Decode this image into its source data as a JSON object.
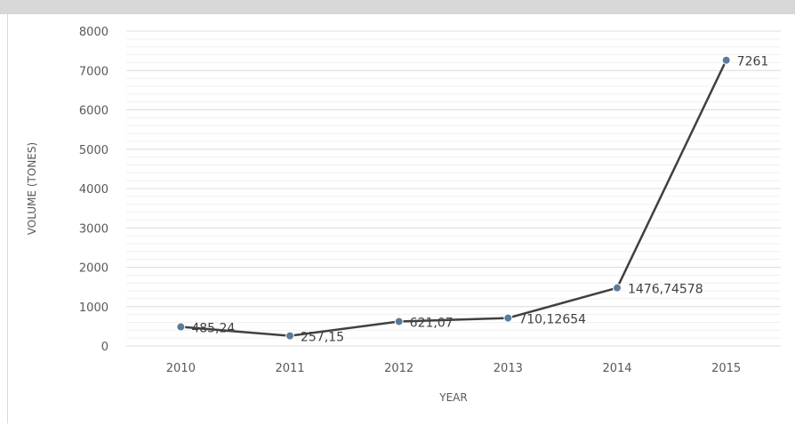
{
  "chart_data": {
    "type": "line",
    "categories": [
      "2010",
      "2011",
      "2012",
      "2013",
      "2014",
      "2015"
    ],
    "series": [
      {
        "values": [
          485.24,
          257.15,
          621.07,
          710.12654,
          1476.74578,
          7261
        ]
      }
    ],
    "data_labels": [
      "485,24",
      "257,15",
      "621,07",
      "710,12654",
      "1476,74578",
      "7261"
    ],
    "xlabel": "YEAR",
    "ylabel": "VOLUME (TONES)",
    "ylim": [
      0,
      8000
    ],
    "yticks": [
      "0",
      "1000",
      "2000",
      "3000",
      "4000",
      "5000",
      "6000",
      "7000",
      "8000"
    ],
    "grid": true,
    "colors": {
      "line": "#404040",
      "marker": "#5b7b9a",
      "grid": "#e6e6e6"
    }
  }
}
